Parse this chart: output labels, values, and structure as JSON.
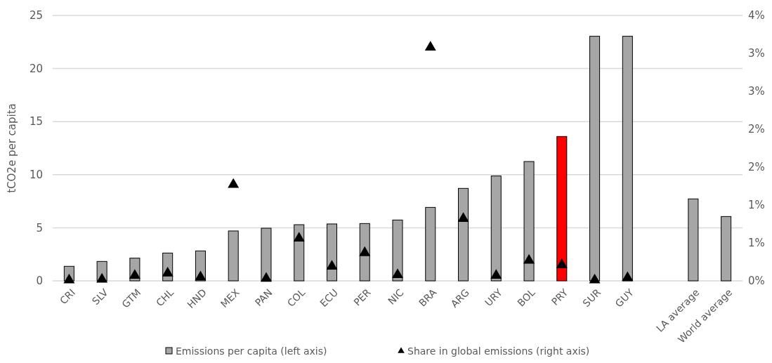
{
  "chart_data": {
    "type": "bar",
    "categories": [
      "CRI",
      "SLV",
      "GTM",
      "CHL",
      "HND",
      "MEX",
      "PAN",
      "COL",
      "ECU",
      "PER",
      "NIC",
      "BRA",
      "ARG",
      "URY",
      "BOL",
      "PRY",
      "SUR",
      "GUY",
      null,
      "LA average",
      "World average"
    ],
    "series": [
      {
        "name": "Emissions per capita (left axis)",
        "color": "#a6a6a6",
        "colors": [
          "#a6a6a6",
          "#a6a6a6",
          "#a6a6a6",
          "#a6a6a6",
          "#a6a6a6",
          "#a6a6a6",
          "#a6a6a6",
          "#a6a6a6",
          "#a6a6a6",
          "#a6a6a6",
          "#a6a6a6",
          "#a6a6a6",
          "#a6a6a6",
          "#a6a6a6",
          "#a6a6a6",
          "#ff0000",
          "#a6a6a6",
          "#a6a6a6",
          null,
          "#a6a6a6",
          "#a6a6a6"
        ],
        "values": [
          1.37,
          1.83,
          2.14,
          2.62,
          2.82,
          4.7,
          4.96,
          5.29,
          5.36,
          5.4,
          5.73,
          6.92,
          8.71,
          9.88,
          11.24,
          13.6,
          23.04,
          23.04,
          null,
          7.72,
          6.06
        ]
      },
      {
        "name": "Share in global emissions (right axis)",
        "type": "scatter",
        "axis": "y2",
        "marker": "triangle",
        "color": "#000000",
        "values": [
          0.01,
          0.02,
          0.07,
          0.1,
          0.05,
          1.27,
          0.03,
          0.56,
          0.19,
          0.37,
          0.08,
          3.08,
          0.82,
          0.07,
          0.27,
          0.21,
          0.01,
          0.04,
          null,
          null,
          null
        ]
      }
    ],
    "ylabel": "tCO2e per capita",
    "ylim": [
      0,
      25
    ],
    "yticks": [
      0,
      5,
      10,
      15,
      20,
      25
    ],
    "y2lim": [
      0,
      3.5
    ],
    "y2ticks": [
      {
        "value": 0,
        "label": "0%"
      },
      {
        "value": 0.5,
        "label": "1%"
      },
      {
        "value": 1,
        "label": "1%"
      },
      {
        "value": 1.5,
        "label": "2%"
      },
      {
        "value": 2,
        "label": "2%"
      },
      {
        "value": 2.5,
        "label": "3%"
      },
      {
        "value": 3,
        "label": "3%"
      },
      {
        "value": 3.5,
        "label": "4%"
      }
    ],
    "grid": "y",
    "legend": "bottom"
  }
}
